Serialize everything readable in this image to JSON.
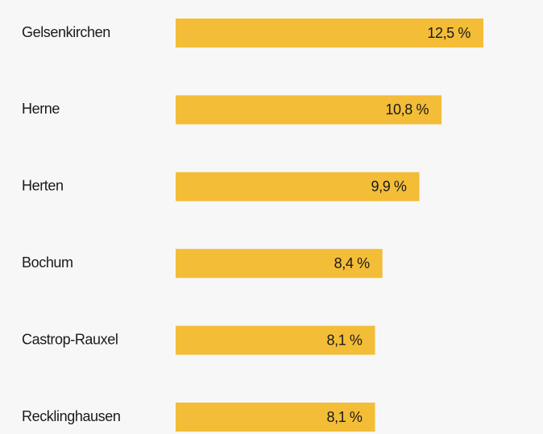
{
  "chart_data": {
    "type": "bar",
    "orientation": "horizontal",
    "categories": [
      "Gelsenkirchen",
      "Herne",
      "Herten",
      "Bochum",
      "Castrop-Rauxel",
      "Recklinghausen"
    ],
    "values": [
      12.5,
      10.8,
      9.9,
      8.4,
      8.1,
      8.1
    ],
    "value_labels": [
      "12,5 %",
      "10,8 %",
      "9,9 %",
      "8,4 %",
      "8,1 %",
      "8,1 %"
    ],
    "color": "#f3bd38"
  }
}
